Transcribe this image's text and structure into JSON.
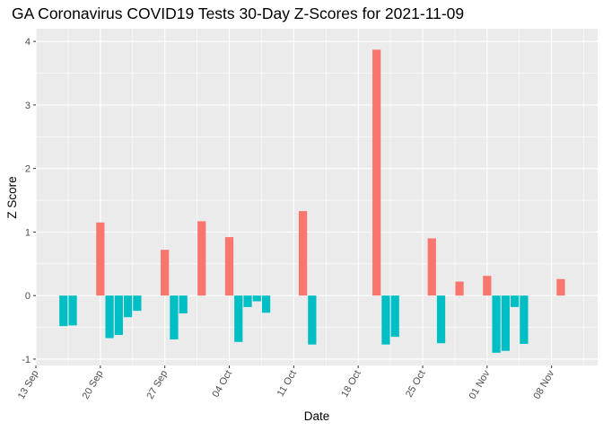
{
  "title": "GA Coronavirus COVID19 Tests 30-Day Z-Scores for 2021-11-09",
  "chart_data": {
    "type": "bar",
    "title": "GA Coronavirus COVID19 Tests 30-Day Z-Scores for 2021-11-09",
    "xlabel": "Date",
    "ylabel": "Z Score",
    "x_type": "date",
    "xlim": [
      "2021-09-13",
      "2021-11-13"
    ],
    "ylim": [
      -1.1,
      4.2
    ],
    "grid": true,
    "legend": "none",
    "y_ticks": [
      -1,
      0,
      1,
      2,
      3,
      4
    ],
    "x_ticks": [
      {
        "date": "2021-09-13",
        "label": "13 Sep"
      },
      {
        "date": "2021-09-20",
        "label": "20 Sep"
      },
      {
        "date": "2021-09-27",
        "label": "27 Sep"
      },
      {
        "date": "2021-10-04",
        "label": "04 Oct"
      },
      {
        "date": "2021-10-11",
        "label": "11 Oct"
      },
      {
        "date": "2021-10-18",
        "label": "18 Oct"
      },
      {
        "date": "2021-10-25",
        "label": "25 Oct"
      },
      {
        "date": "2021-11-01",
        "label": "01 Nov"
      },
      {
        "date": "2021-11-08",
        "label": "08 Nov"
      }
    ],
    "colors": {
      "positive": "#F8766D",
      "negative": "#00BFC4",
      "panel": "#EBEBEB",
      "grid": "#FFFFFF"
    },
    "points": [
      {
        "date": "2021-09-16",
        "value": -0.48
      },
      {
        "date": "2021-09-17",
        "value": -0.47
      },
      {
        "date": "2021-09-20",
        "value": 1.15
      },
      {
        "date": "2021-09-21",
        "value": -0.67
      },
      {
        "date": "2021-09-22",
        "value": -0.62
      },
      {
        "date": "2021-09-23",
        "value": -0.34
      },
      {
        "date": "2021-09-24",
        "value": -0.24
      },
      {
        "date": "2021-09-27",
        "value": 0.72
      },
      {
        "date": "2021-09-28",
        "value": -0.69
      },
      {
        "date": "2021-09-29",
        "value": -0.28
      },
      {
        "date": "2021-10-01",
        "value": 1.17
      },
      {
        "date": "2021-10-04",
        "value": 0.92
      },
      {
        "date": "2021-10-05",
        "value": -0.73
      },
      {
        "date": "2021-10-06",
        "value": -0.18
      },
      {
        "date": "2021-10-07",
        "value": -0.09
      },
      {
        "date": "2021-10-08",
        "value": -0.27
      },
      {
        "date": "2021-10-12",
        "value": 1.33
      },
      {
        "date": "2021-10-13",
        "value": -0.77
      },
      {
        "date": "2021-10-20",
        "value": 3.87
      },
      {
        "date": "2021-10-21",
        "value": -0.77
      },
      {
        "date": "2021-10-22",
        "value": -0.65
      },
      {
        "date": "2021-10-26",
        "value": 0.9
      },
      {
        "date": "2021-10-27",
        "value": -0.75
      },
      {
        "date": "2021-10-29",
        "value": 0.22
      },
      {
        "date": "2021-11-01",
        "value": 0.31
      },
      {
        "date": "2021-11-02",
        "value": -0.9
      },
      {
        "date": "2021-11-03",
        "value": -0.87
      },
      {
        "date": "2021-11-04",
        "value": -0.18
      },
      {
        "date": "2021-11-05",
        "value": -0.76
      },
      {
        "date": "2021-11-09",
        "value": 0.26
      }
    ]
  }
}
